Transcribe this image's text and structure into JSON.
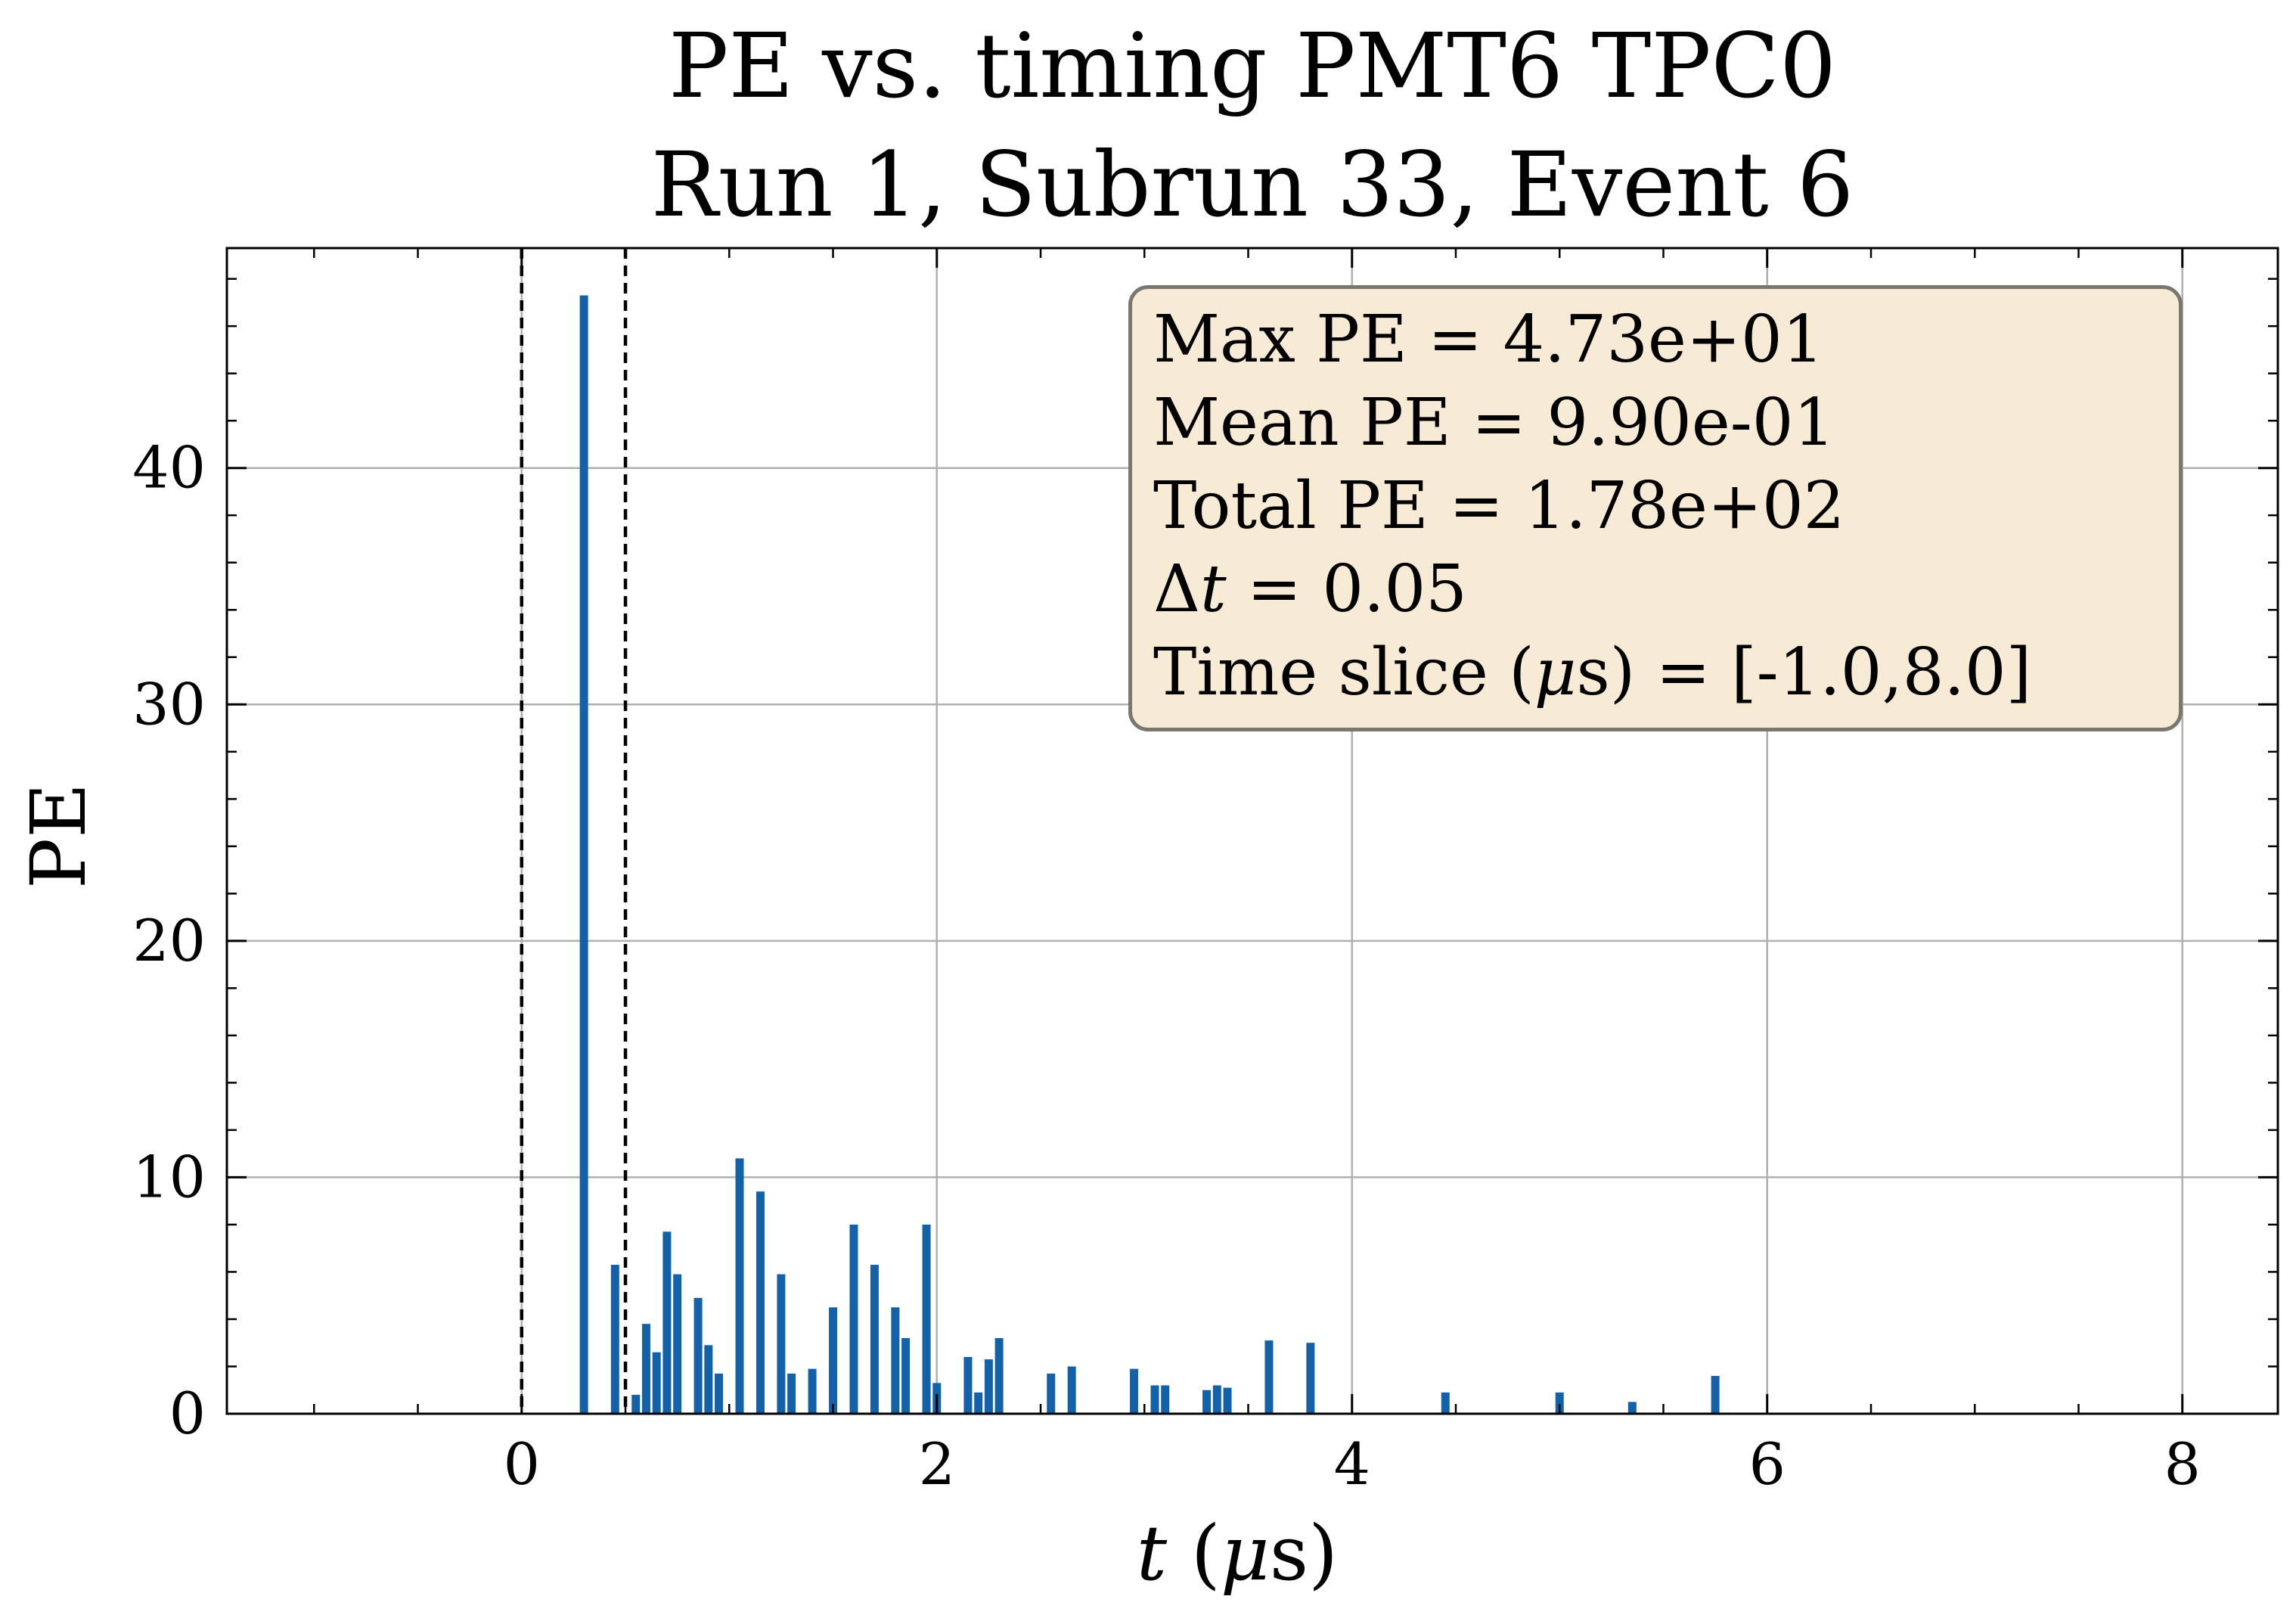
{
  "chart_data": {
    "type": "bar",
    "title": "PE vs. timing PMT6  TPC0",
    "subtitle": "Run 1, Subrun 33, Event 6",
    "xlabel": "t (μs)",
    "ylabel": "PE",
    "xlim": [
      -1.42,
      8.46
    ],
    "ylim": [
      0,
      49.3
    ],
    "xticks": [
      0,
      2,
      4,
      6,
      8
    ],
    "yticks": [
      0,
      10,
      20,
      30,
      40
    ],
    "grid": true,
    "bar_color": "#1361a9",
    "bin_width": 0.05,
    "vlines": [
      0.0,
      0.5
    ],
    "bars": [
      {
        "x": 0.3,
        "y": 47.3
      },
      {
        "x": 0.45,
        "y": 6.3
      },
      {
        "x": 0.55,
        "y": 0.8
      },
      {
        "x": 0.6,
        "y": 3.8
      },
      {
        "x": 0.65,
        "y": 2.6
      },
      {
        "x": 0.7,
        "y": 7.7
      },
      {
        "x": 0.75,
        "y": 5.9
      },
      {
        "x": 0.85,
        "y": 4.9
      },
      {
        "x": 0.9,
        "y": 2.9
      },
      {
        "x": 0.95,
        "y": 1.7
      },
      {
        "x": 1.05,
        "y": 10.8
      },
      {
        "x": 1.15,
        "y": 9.4
      },
      {
        "x": 1.25,
        "y": 5.9
      },
      {
        "x": 1.3,
        "y": 1.7
      },
      {
        "x": 1.4,
        "y": 1.9
      },
      {
        "x": 1.5,
        "y": 4.5
      },
      {
        "x": 1.6,
        "y": 8.0
      },
      {
        "x": 1.7,
        "y": 6.3
      },
      {
        "x": 1.8,
        "y": 4.5
      },
      {
        "x": 1.85,
        "y": 3.2
      },
      {
        "x": 1.95,
        "y": 8.0
      },
      {
        "x": 2.0,
        "y": 1.3
      },
      {
        "x": 2.15,
        "y": 2.4
      },
      {
        "x": 2.2,
        "y": 0.9
      },
      {
        "x": 2.25,
        "y": 2.3
      },
      {
        "x": 2.3,
        "y": 3.2
      },
      {
        "x": 2.55,
        "y": 1.7
      },
      {
        "x": 2.65,
        "y": 2.0
      },
      {
        "x": 2.95,
        "y": 1.9
      },
      {
        "x": 3.05,
        "y": 1.2
      },
      {
        "x": 3.1,
        "y": 1.2
      },
      {
        "x": 3.3,
        "y": 1.0
      },
      {
        "x": 3.35,
        "y": 1.2
      },
      {
        "x": 3.4,
        "y": 1.1
      },
      {
        "x": 3.6,
        "y": 3.1
      },
      {
        "x": 3.8,
        "y": 3.0
      },
      {
        "x": 4.45,
        "y": 0.9
      },
      {
        "x": 5.0,
        "y": 0.9
      },
      {
        "x": 5.35,
        "y": 0.5
      },
      {
        "x": 5.75,
        "y": 1.6
      }
    ],
    "stats": {
      "max_label": "Max PE ",
      "max_value": " = 4.73e+01",
      "mean_label": "Mean PE ",
      "mean_value": " = 9.90e-01",
      "total_label": "Total PE ",
      "total_value": " = 1.78e+02",
      "dt_delta": "Δ",
      "dt_symbol": "t",
      "dt_value": "  = 0.05",
      "slice_label_pre": "Time slice (",
      "slice_mu": "μ",
      "slice_label_post": "s) ",
      "slice_value": " = [-1.0,8.0]"
    }
  }
}
